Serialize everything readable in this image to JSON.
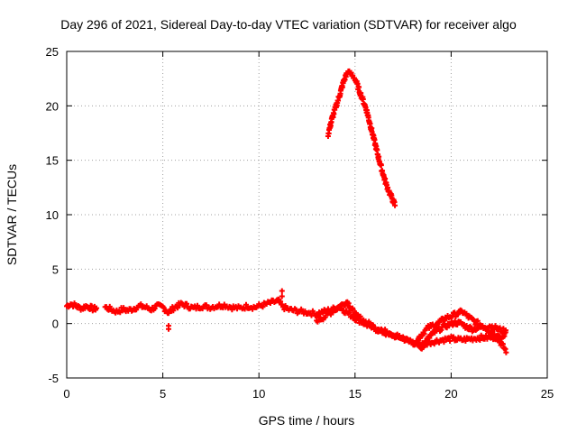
{
  "chart_data": {
    "type": "scatter",
    "title": "Day 296 of 2021, Sidereal Day-to-day VTEC variation (SDTVAR) for receiver algo",
    "xlabel": "GPS time / hours",
    "ylabel": "SDTVAR / TECUs",
    "xlim": [
      0,
      25
    ],
    "ylim": [
      -5,
      25
    ],
    "xticks": [
      0,
      5,
      10,
      15,
      20,
      25
    ],
    "yticks": [
      -5,
      0,
      5,
      10,
      15,
      20,
      25
    ],
    "grid": true,
    "color": "#ff0000",
    "marker": "plus",
    "series": [
      {
        "name": "main",
        "x": [
          0.0,
          0.2,
          0.4,
          0.6,
          0.8,
          1.0,
          1.2,
          1.4,
          1.6,
          1.8,
          2.0,
          2.3,
          2.6,
          2.9,
          3.2,
          3.5,
          3.8,
          4.1,
          4.4,
          4.7,
          5.0,
          5.3,
          5.6,
          6.0,
          6.3,
          6.6,
          7.0,
          7.4,
          7.8,
          8.2,
          8.6,
          9.0,
          9.4,
          9.8,
          10.2,
          10.6,
          11.0,
          11.2,
          11.5,
          11.8,
          12.2,
          12.6,
          13.0,
          13.4,
          13.8,
          14.2,
          14.6,
          15.0,
          15.4,
          15.8,
          16.2,
          16.6,
          17.0,
          17.4,
          17.8,
          18.2,
          18.5
        ],
        "y": [
          1.6,
          1.8,
          1.7,
          1.5,
          1.4,
          1.6,
          1.5,
          1.3,
          1.5,
          null,
          1.5,
          1.3,
          1.1,
          1.3,
          1.2,
          1.4,
          1.6,
          1.5,
          1.3,
          1.6,
          1.5,
          1.0,
          1.5,
          1.8,
          1.6,
          1.4,
          1.6,
          1.5,
          1.6,
          1.7,
          1.5,
          1.4,
          1.6,
          1.5,
          1.7,
          1.9,
          2.1,
          1.6,
          1.3,
          1.2,
          1.1,
          1.0,
          0.9,
          1.1,
          1.3,
          1.5,
          1.0,
          0.5,
          0.1,
          -0.3,
          -0.6,
          -0.9,
          -1.1,
          -1.3,
          -1.6,
          -1.9,
          -2.2
        ]
      },
      {
        "name": "branch-a",
        "x": [
          13.0,
          13.4,
          13.8,
          14.2,
          14.6,
          15.0,
          15.5,
          16.0,
          16.5,
          17.0,
          17.5,
          18.0,
          18.5,
          19.0,
          19.5,
          20.0,
          20.5,
          21.0,
          21.5,
          22.0,
          22.5,
          22.9
        ],
        "y": [
          0.3,
          0.6,
          1.1,
          1.6,
          2.0,
          0.8,
          0.2,
          -0.3,
          -0.7,
          -1.0,
          -1.4,
          -1.7,
          -1.9,
          -1.7,
          -1.5,
          -1.4,
          -1.5,
          -1.4,
          -1.3,
          -1.3,
          -1.2,
          -1.0
        ]
      },
      {
        "name": "branch-b",
        "x": [
          18.2,
          18.5,
          18.8,
          19.1,
          19.4,
          19.7,
          20.0,
          20.3,
          20.6,
          20.9,
          21.2,
          21.5,
          21.8,
          22.1,
          22.4,
          22.7,
          22.9
        ],
        "y": [
          -1.6,
          -0.9,
          -0.4,
          -0.1,
          0.1,
          0.5,
          0.7,
          0.9,
          1.1,
          0.6,
          0.2,
          -0.1,
          -0.4,
          -0.8,
          -1.3,
          -2.1,
          -2.6
        ]
      },
      {
        "name": "branch-c",
        "x": [
          18.4,
          18.7,
          19.0,
          19.3,
          19.6,
          19.9,
          20.2,
          20.5,
          20.8,
          21.1,
          21.4,
          21.7,
          22.0,
          22.3,
          22.6,
          22.9
        ],
        "y": [
          -2.4,
          -1.6,
          -1.0,
          -0.6,
          -0.3,
          -0.1,
          0.1,
          0.0,
          -0.3,
          -0.5,
          -0.4,
          -0.3,
          -0.2,
          -0.4,
          -0.6,
          -0.8
        ]
      },
      {
        "name": "peak",
        "x": [
          13.6,
          13.8,
          14.0,
          14.2,
          14.4,
          14.6,
          14.8,
          15.0,
          15.2,
          15.4,
          15.6,
          15.8,
          16.0,
          16.2,
          16.4,
          16.6,
          16.8,
          17.0,
          17.1
        ],
        "y": [
          17.4,
          18.8,
          19.9,
          21.0,
          22.2,
          23.1,
          22.9,
          22.5,
          21.5,
          20.6,
          19.6,
          18.2,
          16.8,
          15.4,
          14.1,
          12.9,
          12.0,
          11.2,
          10.8
        ]
      }
    ],
    "spike": {
      "x": 11.2,
      "y": 3.0
    },
    "dip": {
      "x": 5.3,
      "y": -0.2
    }
  }
}
